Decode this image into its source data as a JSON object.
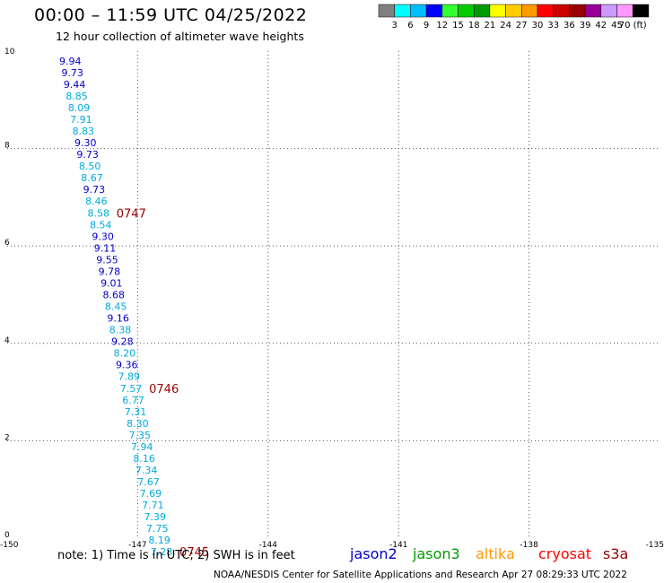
{
  "header": {
    "title": "00:00 – 11:59 UTC 04/25/2022",
    "subtitle": "12 hour collection of altimeter wave heights"
  },
  "colorbar": {
    "colors": [
      "#808080",
      "#00ffff",
      "#00bfff",
      "#0000ff",
      "#33ff33",
      "#00cc00",
      "#009900",
      "#ffff00",
      "#ffcc00",
      "#ff9900",
      "#ff0000",
      "#cc0000",
      "#990000",
      "#990099",
      "#cc99ff",
      "#ff99ff",
      "#000000"
    ],
    "labels": [
      "3",
      "6",
      "9",
      "12",
      "15",
      "18",
      "21",
      "24",
      "27",
      "30",
      "33",
      "36",
      "39",
      "42",
      "45",
      "70 (ft)"
    ]
  },
  "chart_data": {
    "type": "scatter",
    "x_ticks": [
      "-150",
      "-147",
      "-144",
      "-141",
      "-138",
      "-135"
    ],
    "y_ticks": [
      "0",
      "2",
      "4",
      "6",
      "8",
      "10"
    ],
    "xlim": [
      -150,
      -135
    ],
    "ylim": [
      0,
      10
    ],
    "grid": true,
    "colors": {
      "dark_blue": "#0000cc",
      "light_blue": "#00aadd",
      "time_label": "#990000"
    },
    "points": [
      {
        "x": -148.55,
        "y": 9.8,
        "label": "9.94",
        "color": "dark_blue"
      },
      {
        "x": -148.5,
        "y": 9.56,
        "label": "9.73",
        "color": "dark_blue"
      },
      {
        "x": -148.45,
        "y": 9.32,
        "label": "9.44",
        "color": "dark_blue"
      },
      {
        "x": -148.4,
        "y": 9.08,
        "label": "8.85",
        "color": "light_blue"
      },
      {
        "x": -148.35,
        "y": 8.84,
        "label": "8.09",
        "color": "light_blue"
      },
      {
        "x": -148.3,
        "y": 8.6,
        "label": "7.91",
        "color": "light_blue"
      },
      {
        "x": -148.25,
        "y": 8.36,
        "label": "8.83",
        "color": "light_blue"
      },
      {
        "x": -148.2,
        "y": 8.12,
        "label": "9.30",
        "color": "dark_blue"
      },
      {
        "x": -148.15,
        "y": 7.88,
        "label": "9.73",
        "color": "dark_blue"
      },
      {
        "x": -148.1,
        "y": 7.64,
        "label": "8.50",
        "color": "light_blue"
      },
      {
        "x": -148.05,
        "y": 7.4,
        "label": "8.67",
        "color": "light_blue"
      },
      {
        "x": -148.0,
        "y": 7.16,
        "label": "9.73",
        "color": "dark_blue"
      },
      {
        "x": -147.95,
        "y": 6.92,
        "label": "8.46",
        "color": "light_blue"
      },
      {
        "x": -147.9,
        "y": 6.68,
        "label": "8.58",
        "color": "light_blue"
      },
      {
        "x": -147.85,
        "y": 6.44,
        "label": "8.54",
        "color": "light_blue"
      },
      {
        "x": -147.8,
        "y": 6.2,
        "label": "9.30",
        "color": "dark_blue"
      },
      {
        "x": -147.75,
        "y": 5.96,
        "label": "9.11",
        "color": "dark_blue"
      },
      {
        "x": -147.7,
        "y": 5.72,
        "label": "9.55",
        "color": "dark_blue"
      },
      {
        "x": -147.65,
        "y": 5.48,
        "label": "9.78",
        "color": "dark_blue"
      },
      {
        "x": -147.6,
        "y": 5.24,
        "label": "9.01",
        "color": "dark_blue"
      },
      {
        "x": -147.55,
        "y": 5.0,
        "label": "8.68",
        "color": "dark_blue"
      },
      {
        "x": -147.5,
        "y": 4.76,
        "label": "8.45",
        "color": "light_blue"
      },
      {
        "x": -147.45,
        "y": 4.52,
        "label": "9.16",
        "color": "dark_blue"
      },
      {
        "x": -147.4,
        "y": 4.28,
        "label": "8.38",
        "color": "light_blue"
      },
      {
        "x": -147.35,
        "y": 4.04,
        "label": "9.28",
        "color": "dark_blue"
      },
      {
        "x": -147.3,
        "y": 3.8,
        "label": "8.20",
        "color": "light_blue"
      },
      {
        "x": -147.25,
        "y": 3.56,
        "label": "9.36",
        "color": "dark_blue"
      },
      {
        "x": -147.2,
        "y": 3.32,
        "label": "7.89",
        "color": "light_blue"
      },
      {
        "x": -147.15,
        "y": 3.08,
        "label": "7.57",
        "color": "light_blue"
      },
      {
        "x": -147.1,
        "y": 2.84,
        "label": "6.77",
        "color": "light_blue"
      },
      {
        "x": -147.05,
        "y": 2.6,
        "label": "7.31",
        "color": "light_blue"
      },
      {
        "x": -147.0,
        "y": 2.36,
        "label": "8.30",
        "color": "light_blue"
      },
      {
        "x": -146.95,
        "y": 2.12,
        "label": "7.35",
        "color": "light_blue"
      },
      {
        "x": -146.9,
        "y": 1.88,
        "label": "7.94",
        "color": "light_blue"
      },
      {
        "x": -146.85,
        "y": 1.64,
        "label": "8.16",
        "color": "light_blue"
      },
      {
        "x": -146.8,
        "y": 1.4,
        "label": "7.34",
        "color": "light_blue"
      },
      {
        "x": -146.75,
        "y": 1.16,
        "label": "7.67",
        "color": "light_blue"
      },
      {
        "x": -146.7,
        "y": 0.92,
        "label": "7.69",
        "color": "light_blue"
      },
      {
        "x": -146.65,
        "y": 0.68,
        "label": "7.71",
        "color": "light_blue"
      },
      {
        "x": -146.6,
        "y": 0.44,
        "label": "7.39",
        "color": "light_blue"
      },
      {
        "x": -146.55,
        "y": 0.2,
        "label": "7.75",
        "color": "light_blue"
      },
      {
        "x": -146.5,
        "y": -0.04,
        "label": "8.19",
        "color": "light_blue"
      },
      {
        "x": -146.45,
        "y": -0.28,
        "label": "7.28",
        "color": "light_blue"
      }
    ],
    "time_labels": [
      {
        "label": "0747",
        "near_value": "8.58"
      },
      {
        "label": "0746",
        "near_value": "7.57"
      },
      {
        "label": "0745",
        "near_value": "7.28"
      }
    ]
  },
  "footer": {
    "note": "note:  1) Time is in UTC;  2) SWH is in feet",
    "legend": [
      {
        "name": "jason2",
        "color": "#0000cc"
      },
      {
        "name": "jason3",
        "color": "#009900"
      },
      {
        "name": "altika",
        "color": "#ff9900"
      },
      {
        "name": "cryosat",
        "color": "#ff0000"
      },
      {
        "name": "s3a",
        "color": "#990000"
      }
    ],
    "credit": "NOAA/NESDIS Center for Satellite Applications and Research     Apr 27 08:29:33 UTC 2022"
  }
}
